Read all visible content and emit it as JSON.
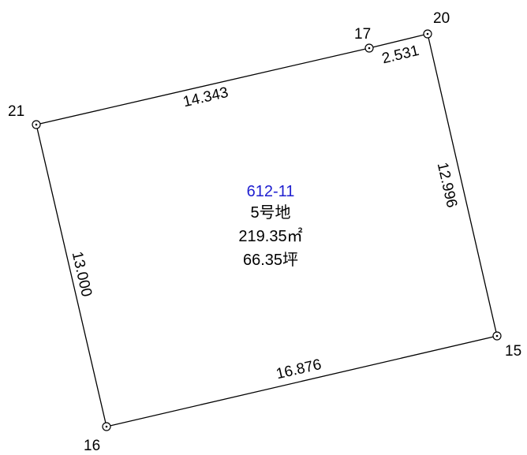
{
  "parcel": {
    "number": "612-11",
    "lot": "5号地",
    "area_sqm": "219.35㎡",
    "area_tsubo": "66.35坪"
  },
  "boundary_points": [
    {
      "id": "p21",
      "label": "21"
    },
    {
      "id": "p17",
      "label": "17"
    },
    {
      "id": "p20",
      "label": "20"
    },
    {
      "id": "p15",
      "label": "15"
    },
    {
      "id": "p16",
      "label": "16"
    }
  ],
  "edges": [
    {
      "from": "21",
      "to": "17",
      "length": "14.343"
    },
    {
      "from": "17",
      "to": "20",
      "length": "2.531"
    },
    {
      "from": "20",
      "to": "15",
      "length": "12.996"
    },
    {
      "from": "15",
      "to": "16",
      "length": "16.876"
    },
    {
      "from": "16",
      "to": "21",
      "length": "13.000"
    }
  ],
  "colors": {
    "line": "#000000",
    "parcel_number": "#2020d0",
    "background": "#ffffff"
  }
}
